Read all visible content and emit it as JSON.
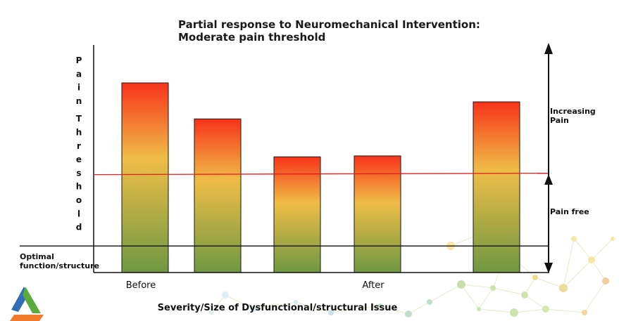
{
  "chart_data": {
    "type": "bar",
    "title_lines": [
      "Partial response to Neuromechanical Intervention:",
      "Moderate pain threshold"
    ],
    "ylabel": "Pain Threshold",
    "xlabel": "Severity/Size of Dysfunctional/structural Issue",
    "categories": [
      "Before",
      "",
      "",
      "After",
      ""
    ],
    "values": [
      100,
      81,
      61,
      61.5,
      90
    ],
    "ylim": [
      0,
      120
    ],
    "grid": false,
    "pain_threshold_line": 52,
    "optimal_baseline": 14,
    "baseline_label": "Optimal function/structure",
    "annotations": {
      "upper": "Increasing Pain",
      "lower": "Pain free"
    },
    "colors": {
      "bar_top": "#f8331a",
      "bar_mid": "#efbd47",
      "bar_bottom": "#6e9842",
      "threshold_line": "#e02020",
      "axis": "#111111"
    }
  },
  "logo": {
    "icon": "tri-color-triangle-logo",
    "colors": [
      "#2f6fb5",
      "#5aaa3c",
      "#f07a2a"
    ]
  }
}
